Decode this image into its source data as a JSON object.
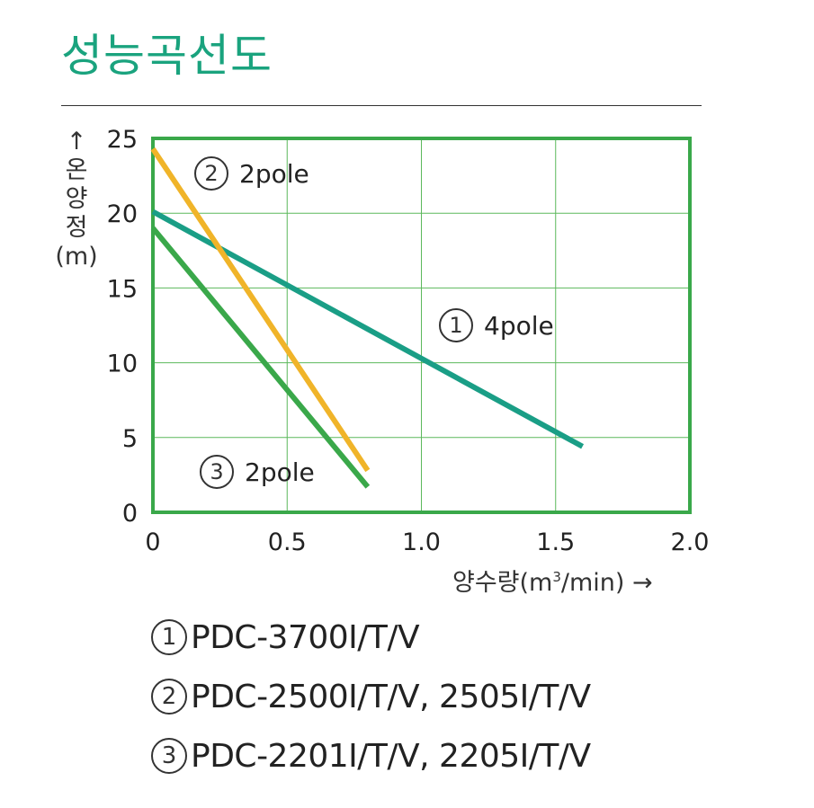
{
  "title": "성능곡선도",
  "chart_data": {
    "type": "line",
    "ylabel_arrow": "↑",
    "ylabel_chars": [
      "온",
      "양",
      "정",
      "(m)"
    ],
    "xlabel_pre": "양수량(m",
    "xlabel_sup": "3",
    "xlabel_post": "/min) →",
    "xlim": [
      0,
      2.0
    ],
    "ylim": [
      0,
      25
    ],
    "x_ticks": [
      "0",
      "0.5",
      "1.0",
      "1.5",
      "2.0"
    ],
    "y_ticks": [
      "0",
      "5",
      "10",
      "15",
      "20",
      "25"
    ],
    "grid": true,
    "series": [
      {
        "id": "1",
        "marker": "1",
        "name": "4pole",
        "color": "#1a9e86",
        "x": [
          0,
          1.6
        ],
        "y": [
          20.1,
          4.4
        ]
      },
      {
        "id": "2",
        "marker": "2",
        "name": "2pole",
        "color": "#f0b429",
        "x": [
          0,
          0.8
        ],
        "y": [
          24.3,
          2.8
        ]
      },
      {
        "id": "3",
        "marker": "3",
        "name": "2pole",
        "color": "#3aa84a",
        "x": [
          0,
          0.8
        ],
        "y": [
          19.0,
          1.7
        ]
      }
    ]
  },
  "legend": [
    {
      "marker": "1",
      "text": "PDC-3700I/T/V"
    },
    {
      "marker": "2",
      "text": "PDC-2500I/T/V, 2505I/T/V"
    },
    {
      "marker": "3",
      "text": "PDC-2201I/T/V, 2205I/T/V"
    }
  ],
  "colors": {
    "title": "#1aa37e",
    "frame": "#3aa84a",
    "grid": "#5cb85c"
  }
}
